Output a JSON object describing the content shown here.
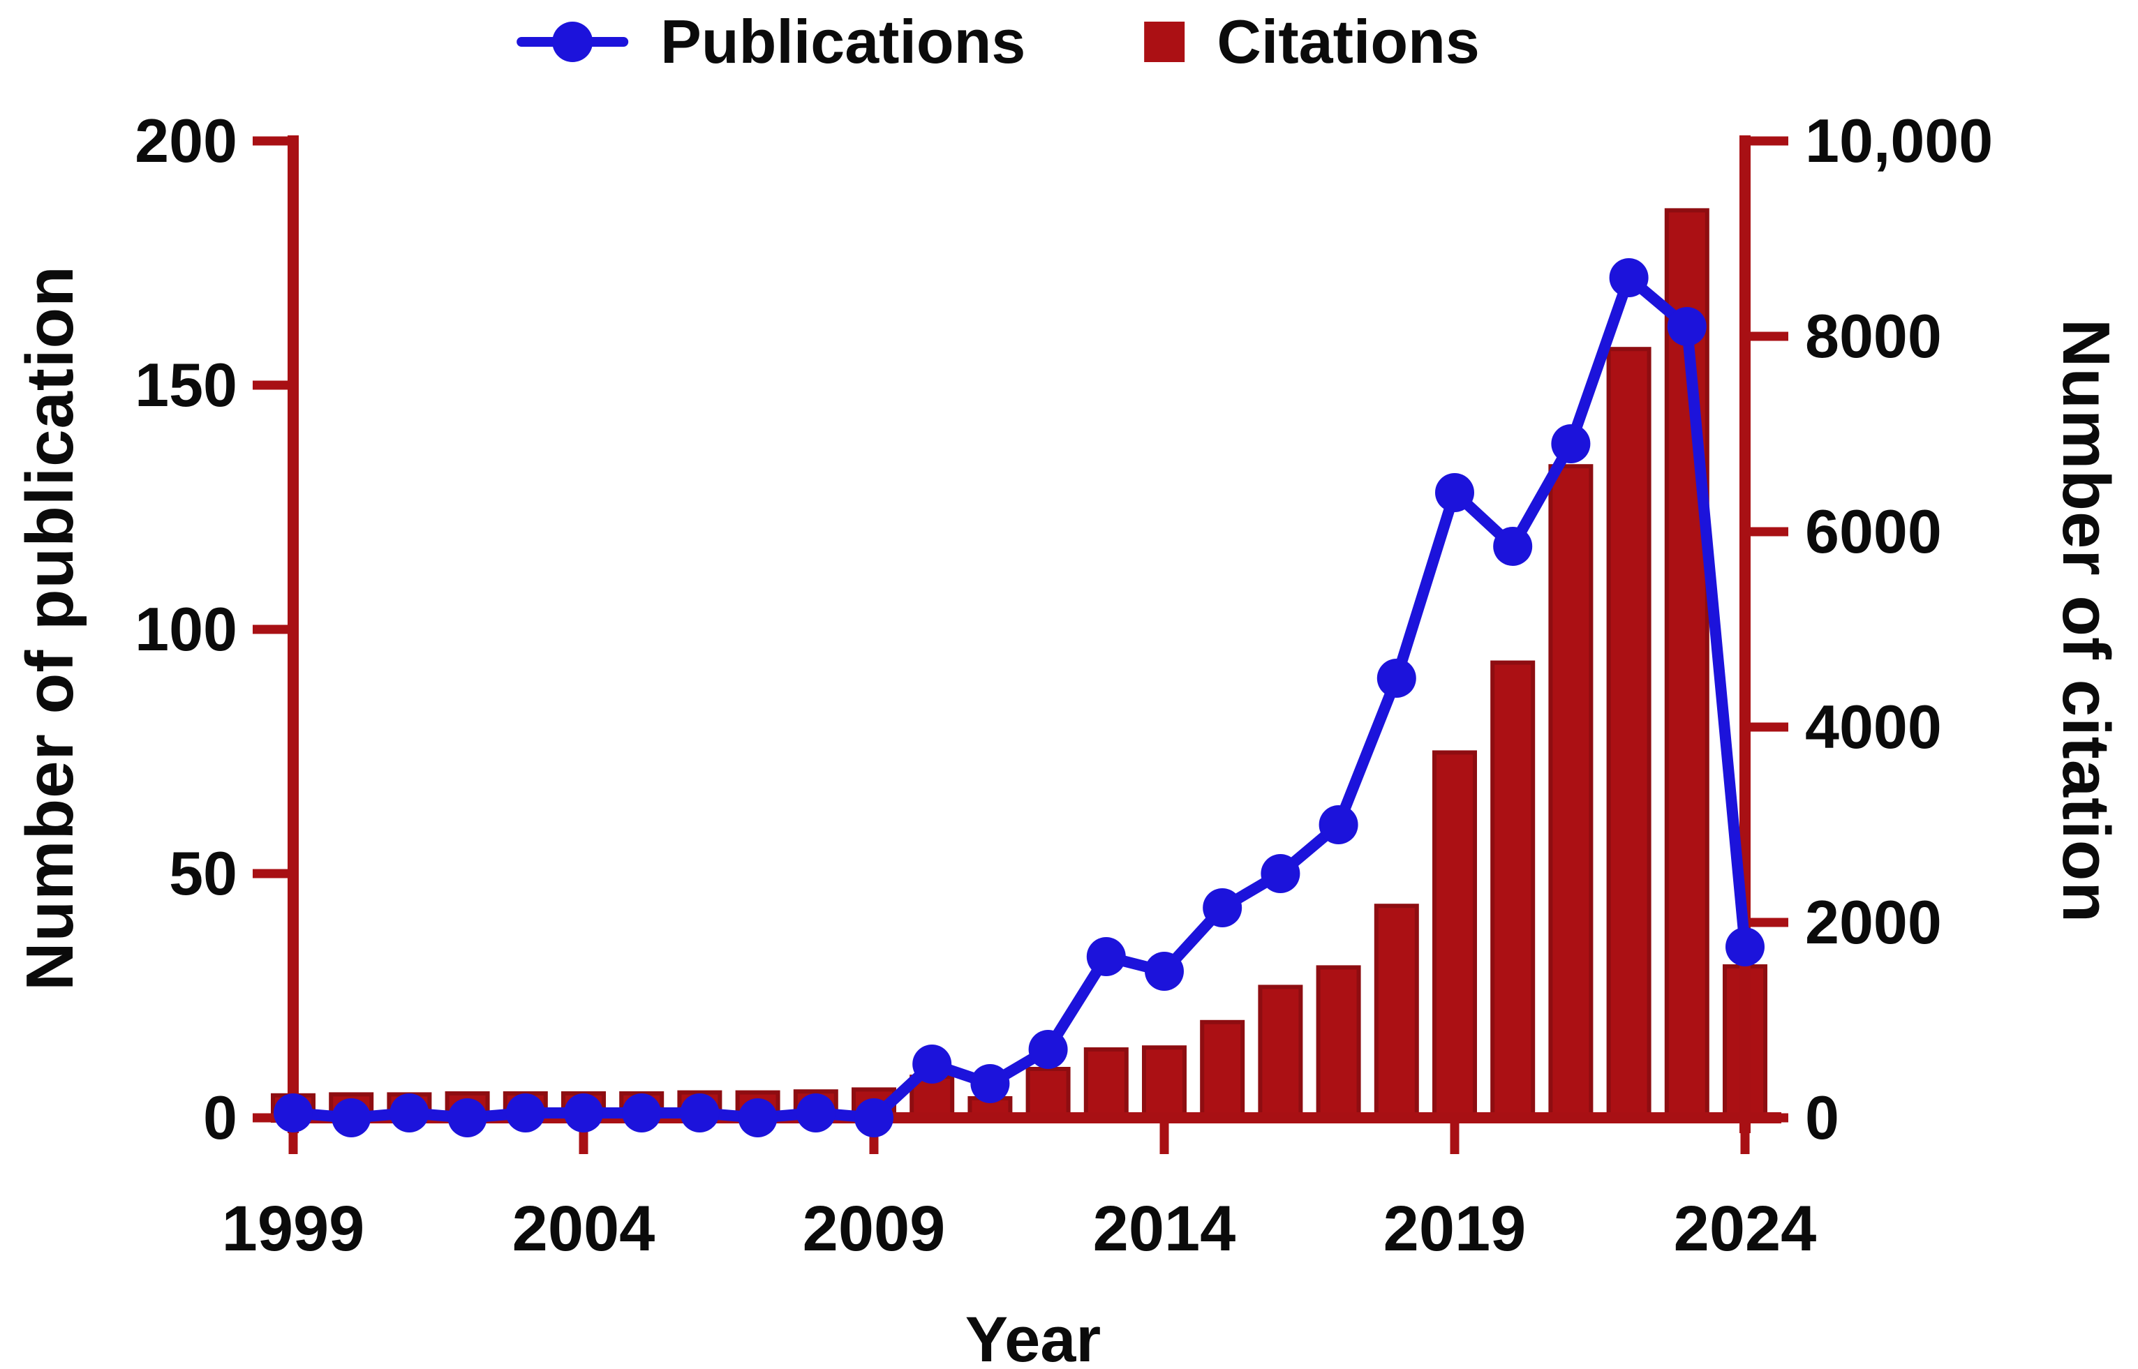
{
  "legend": {
    "publications_label": "Publications",
    "citations_label": "Citations"
  },
  "colors": {
    "publications_blue": "#1c13db",
    "citations_red": "#ab1014",
    "citations_red_edge": "#8e0d11",
    "axis_red": "#a81014",
    "text": "#0b0b0b",
    "background": "#ffffff"
  },
  "chart_data": {
    "type": "combo",
    "x": [
      1999,
      2000,
      2001,
      2002,
      2003,
      2004,
      2005,
      2006,
      2007,
      2008,
      2009,
      2010,
      2011,
      2012,
      2013,
      2014,
      2015,
      2016,
      2017,
      2018,
      2019,
      2020,
      2021,
      2022,
      2023,
      2024
    ],
    "series": [
      {
        "name": "Publications",
        "type": "line",
        "axis": "left",
        "color": "#1c13db",
        "values": [
          1,
          0,
          1,
          0,
          1,
          1,
          1,
          1,
          0,
          1,
          0,
          11,
          7,
          14,
          33,
          30,
          43,
          50,
          60,
          90,
          128,
          117,
          138,
          172,
          162,
          35
        ]
      },
      {
        "name": "Citations",
        "type": "bar",
        "axis": "right",
        "color": "#ab1014",
        "values": [
          230,
          240,
          240,
          250,
          250,
          250,
          250,
          260,
          260,
          270,
          290,
          420,
          200,
          500,
          700,
          720,
          980,
          1340,
          1540,
          2170,
          3740,
          4660,
          6670,
          7870,
          9290,
          1550
        ]
      }
    ],
    "left_axis": {
      "label": "Number of publication",
      "range": [
        0,
        200
      ],
      "ticks": [
        0,
        50,
        100,
        150,
        200
      ],
      "tick_labels": [
        "0",
        "50",
        "100",
        "150",
        "200"
      ]
    },
    "right_axis": {
      "label": "Number of citation",
      "range": [
        0,
        10000
      ],
      "ticks": [
        0,
        2000,
        4000,
        6000,
        8000,
        10000
      ],
      "tick_labels": [
        "0",
        "2000",
        "4000",
        "6000",
        "8000",
        "10,000"
      ]
    },
    "x_axis": {
      "label": "Year",
      "tick_years": [
        1999,
        2004,
        2009,
        2014,
        2019,
        2024
      ],
      "tick_year_labels": [
        "1999",
        "2004",
        "2009",
        "2014",
        "2019",
        "2024"
      ]
    },
    "grid": false,
    "legend_position": "top-center"
  }
}
